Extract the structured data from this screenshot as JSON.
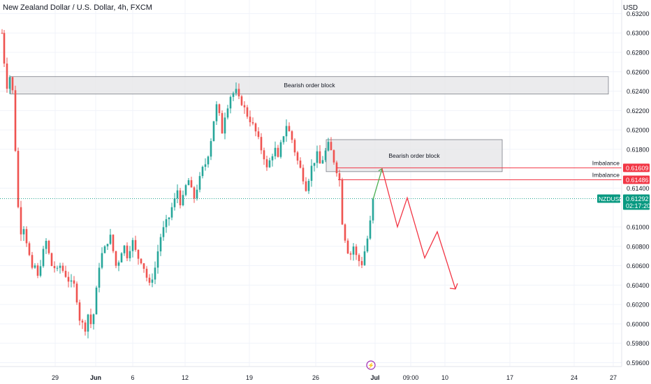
{
  "header": {
    "title": "New Zealand Dollar / U.S. Dollar, 4h, FXCM",
    "currency": "USD"
  },
  "colors": {
    "up": "#26a69a",
    "down": "#ef5350",
    "zone_fill": "#e6e6e9",
    "zone_stroke": "#7b7e87",
    "projection": "#f23645",
    "projection_up": "#4caf50",
    "price_line": "#089981"
  },
  "chart_data": {
    "type": "candlestick",
    "title": "New Zealand Dollar / U.S. Dollar, 4h, FXCM",
    "y_axis": {
      "range": [
        0.5956,
        0.6334
      ],
      "ticks": [
        "0.63200",
        "0.63000",
        "0.62800",
        "0.62600",
        "0.62400",
        "0.62200",
        "0.62000",
        "0.61800",
        "0.61400",
        "0.61000",
        "0.60800",
        "0.60600",
        "0.60400",
        "0.60200",
        "0.60000",
        "0.59800",
        "0.59600"
      ],
      "unit": "USD"
    },
    "x_axis": {
      "ticks": [
        "29",
        "Jun",
        "6",
        "12",
        "19",
        "26",
        "Jul",
        "09:00",
        "10",
        "17",
        "24",
        "27"
      ]
    },
    "grid": true,
    "trend_points": [
      [
        0.63,
        3
      ],
      [
        0.627,
        6
      ],
      [
        0.6245,
        10
      ],
      [
        0.6255,
        14
      ],
      [
        0.624,
        18
      ],
      [
        0.618,
        22
      ],
      [
        0.612,
        26
      ],
      [
        0.6095,
        30
      ],
      [
        0.61,
        34
      ],
      [
        0.6085,
        38
      ],
      [
        0.607,
        42
      ],
      [
        0.6055,
        46
      ],
      [
        0.606,
        50
      ],
      [
        0.6048,
        54
      ],
      [
        0.6062,
        58
      ],
      [
        0.6075,
        62
      ],
      [
        0.6085,
        66
      ],
      [
        0.6072,
        70
      ],
      [
        0.606,
        74
      ],
      [
        0.6058,
        78
      ],
      [
        0.6055,
        82
      ],
      [
        0.606,
        86
      ],
      [
        0.6055,
        90
      ],
      [
        0.605,
        94
      ],
      [
        0.6045,
        98
      ],
      [
        0.6042,
        102
      ],
      [
        0.604,
        106
      ],
      [
        0.6025,
        110
      ],
      [
        0.6005,
        114
      ],
      [
        0.6,
        118
      ],
      [
        0.5995,
        122
      ],
      [
        0.601,
        126
      ],
      [
        0.6,
        130
      ],
      [
        0.601,
        134
      ],
      [
        0.6035,
        138
      ],
      [
        0.606,
        142
      ],
      [
        0.6072,
        146
      ],
      [
        0.6078,
        150
      ],
      [
        0.6085,
        154
      ],
      [
        0.609,
        158
      ],
      [
        0.6075,
        162
      ],
      [
        0.606,
        166
      ],
      [
        0.6065,
        170
      ],
      [
        0.6075,
        174
      ],
      [
        0.608,
        178
      ],
      [
        0.607,
        182
      ],
      [
        0.6078,
        186
      ],
      [
        0.6085,
        190
      ],
      [
        0.6075,
        194
      ],
      [
        0.6068,
        198
      ],
      [
        0.6065,
        202
      ],
      [
        0.6058,
        206
      ],
      [
        0.6048,
        210
      ],
      [
        0.604,
        214
      ],
      [
        0.6048,
        218
      ],
      [
        0.6058,
        222
      ],
      [
        0.6075,
        226
      ],
      [
        0.609,
        230
      ],
      [
        0.6098,
        234
      ],
      [
        0.6105,
        238
      ],
      [
        0.611,
        242
      ],
      [
        0.612,
        246
      ],
      [
        0.6128,
        250
      ],
      [
        0.6138,
        254
      ],
      [
        0.6125,
        258
      ],
      [
        0.613,
        262
      ],
      [
        0.6142,
        266
      ],
      [
        0.6148,
        270
      ],
      [
        0.6138,
        274
      ],
      [
        0.613,
        278
      ],
      [
        0.614,
        282
      ],
      [
        0.615,
        286
      ],
      [
        0.616,
        290
      ],
      [
        0.6165,
        294
      ],
      [
        0.6175,
        298
      ],
      [
        0.619,
        302
      ],
      [
        0.621,
        306
      ],
      [
        0.6225,
        310
      ],
      [
        0.6215,
        314
      ],
      [
        0.6198,
        318
      ],
      [
        0.6215,
        322
      ],
      [
        0.6225,
        326
      ],
      [
        0.6235,
        330
      ],
      [
        0.6238,
        334
      ],
      [
        0.624,
        338
      ],
      [
        0.6232,
        342
      ],
      [
        0.6228,
        346
      ],
      [
        0.6222,
        350
      ],
      [
        0.6215,
        354
      ],
      [
        0.621,
        358
      ],
      [
        0.6205,
        362
      ],
      [
        0.6198,
        366
      ],
      [
        0.619,
        370
      ],
      [
        0.618,
        374
      ],
      [
        0.6172,
        378
      ],
      [
        0.616,
        382
      ],
      [
        0.6168,
        386
      ],
      [
        0.6175,
        390
      ],
      [
        0.618,
        394
      ],
      [
        0.617,
        398
      ],
      [
        0.6185,
        402
      ],
      [
        0.6195,
        406
      ],
      [
        0.6205,
        410
      ],
      [
        0.6198,
        414
      ],
      [
        0.619,
        418
      ],
      [
        0.6178,
        422
      ],
      [
        0.6168,
        426
      ],
      [
        0.616,
        430
      ],
      [
        0.615,
        434
      ],
      [
        0.614,
        438
      ],
      [
        0.615,
        442
      ],
      [
        0.6162,
        446
      ],
      [
        0.6168,
        450
      ],
      [
        0.6175,
        454
      ],
      [
        0.6165,
        458
      ],
      [
        0.617,
        462
      ],
      [
        0.6178,
        466
      ],
      [
        0.6185,
        470
      ],
      [
        0.6178,
        474
      ],
      [
        0.6168,
        478
      ],
      [
        0.6158,
        482
      ],
      [
        0.6148,
        486
      ],
      [
        0.6105,
        490
      ],
      [
        0.6088,
        494
      ],
      [
        0.6075,
        498
      ],
      [
        0.6072,
        502
      ],
      [
        0.608,
        506
      ],
      [
        0.607,
        510
      ],
      [
        0.6065,
        514
      ],
      [
        0.6062,
        518
      ],
      [
        0.6075,
        522
      ],
      [
        0.6088,
        526
      ],
      [
        0.6105,
        530
      ],
      [
        0.6128,
        534
      ]
    ],
    "zones": [
      {
        "label": "Bearish order block",
        "y_top": 0.6255,
        "y_bottom": 0.6237
      },
      {
        "label": "Bearish order block",
        "y_top": 0.619,
        "y_bottom": 0.6157
      }
    ],
    "levels": [
      {
        "label": "Imbalance",
        "value": "0.61609",
        "y": 0.61609
      },
      {
        "label": "Imbalance",
        "value": "0.61486",
        "y": 0.61486
      }
    ],
    "current_price": {
      "symbol": "NZDUSD",
      "value": "0.61292",
      "countdown": "02:17:20",
      "y": 0.61292
    },
    "projection": [
      0.6128,
      0.616,
      0.61,
      0.613,
      0.6068,
      0.6095,
      0.6036
    ]
  }
}
